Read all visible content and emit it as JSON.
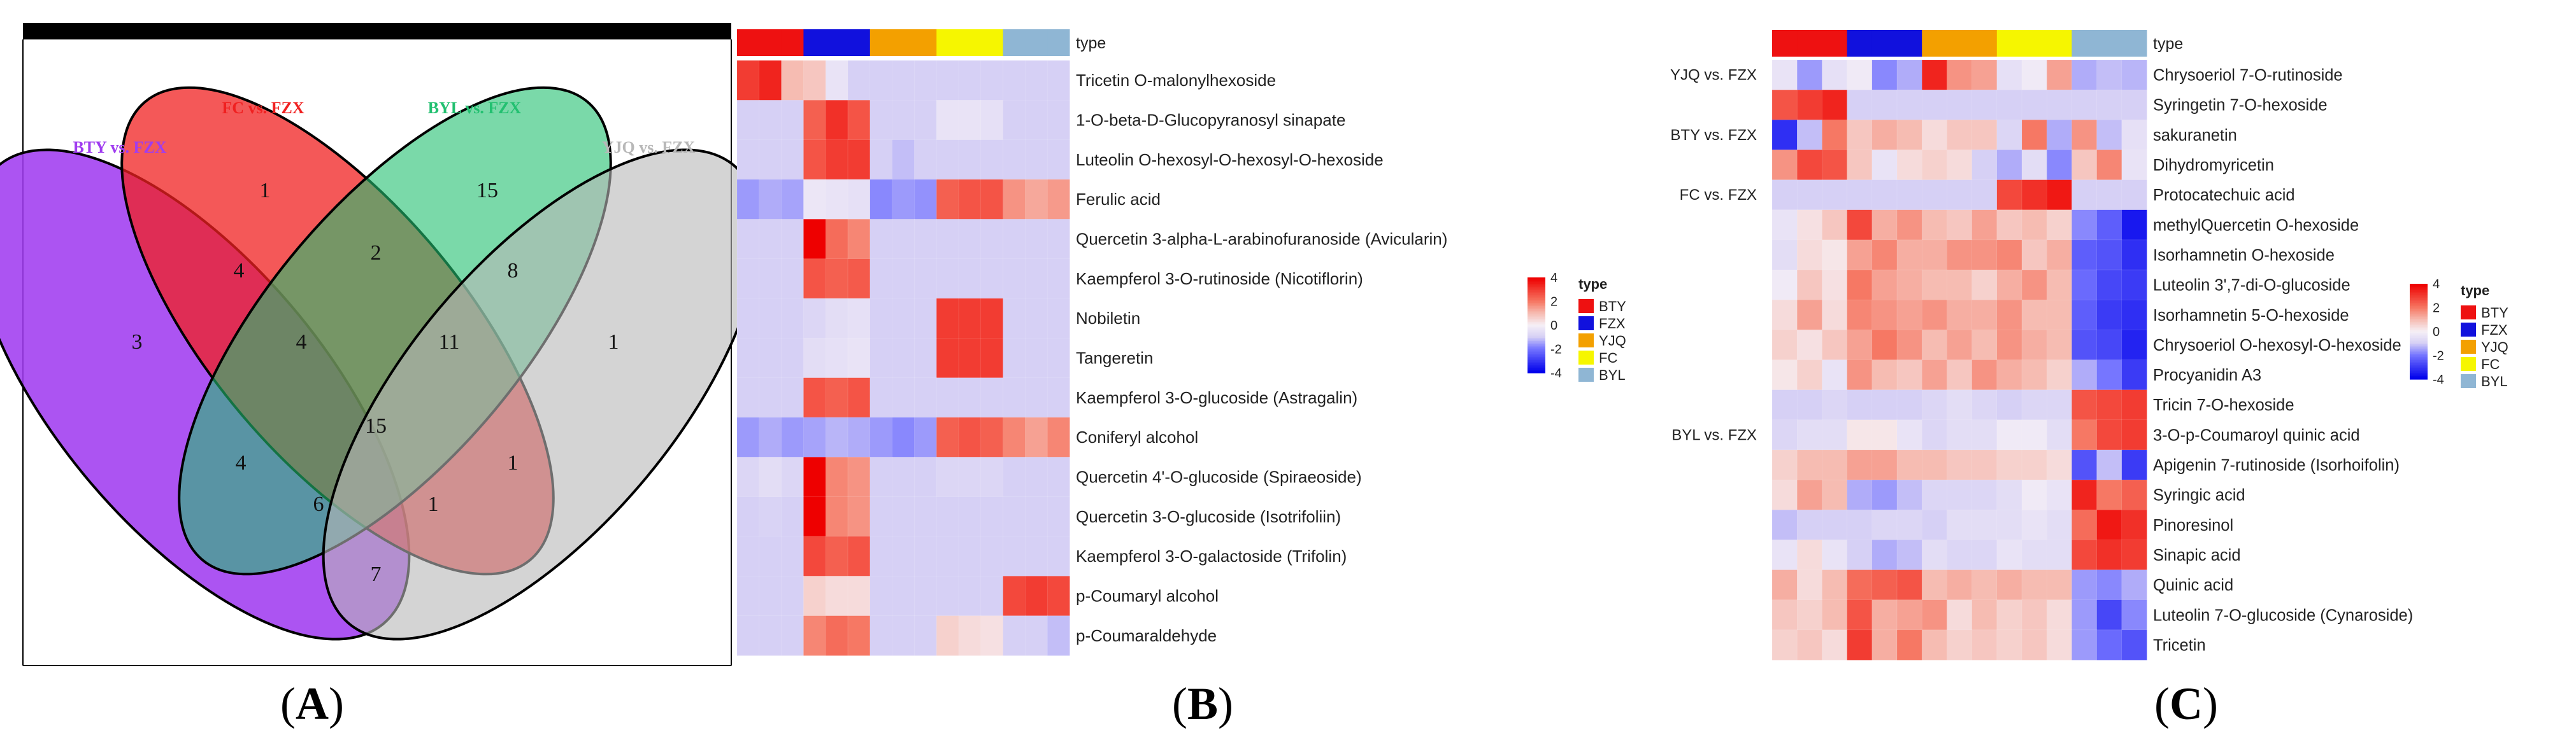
{
  "chart_data": [
    {
      "type": "venn",
      "panel_label": "(A)",
      "sets": [
        {
          "name": "BTY vs. FZX",
          "color": "#a03cf0"
        },
        {
          "name": "FC vs. FZX",
          "color": "#f02020"
        },
        {
          "name": "BYL vs. FZX",
          "color": "#22c070"
        },
        {
          "name": "YJQ vs. FZX",
          "color": "#b8b8b8"
        }
      ],
      "region_counts": {
        "BTY_only": 3,
        "FC_only": 1,
        "BYL_only": 15,
        "YJQ_only": 1,
        "BTY_FC": 4,
        "FC_BYL": 2,
        "BYL_YJQ": 8,
        "BTY_YJQ": 7,
        "BTY_BYL": 4,
        "FC_YJQ": 1,
        "BTY_FC_BYL": 4,
        "FC_BYL_YJQ": 11,
        "BTY_BYL_YJQ": 6,
        "BTY_FC_YJQ": 1,
        "all_four": 15
      }
    },
    {
      "type": "heatmap",
      "panel_label": "(B)",
      "type_header": "type",
      "groups": [
        "BTY",
        "FZX",
        "YJQ",
        "FC",
        "BYL"
      ],
      "replicates": 3,
      "rows": [
        {
          "name": "Tricetin O-malonylhexoside",
          "values": [
            3.0,
            3.4,
            1.0,
            0.8,
            -0.4,
            -1.0,
            -1.0,
            -1.0,
            -1.0,
            -1.0,
            -1.0,
            -1.0,
            -1.0,
            -1.0,
            -1.0
          ]
        },
        {
          "name": "1-O-beta-D-Glucopyranosyl sinapate",
          "values": [
            -1.0,
            -1.0,
            -1.0,
            2.4,
            3.2,
            2.6,
            -1.0,
            -1.0,
            -1.0,
            -0.4,
            -0.4,
            -0.5,
            -1.0,
            -1.0,
            -1.0
          ]
        },
        {
          "name": "Luteolin O-hexosyl-O-hexosyl-O-hexoside",
          "values": [
            -1.0,
            -1.0,
            -1.0,
            2.6,
            3.0,
            3.0,
            -1.0,
            -1.2,
            -1.0,
            -1.0,
            -1.0,
            -1.0,
            -1.0,
            -1.0,
            -1.0
          ]
        },
        {
          "name": "Ferulic acid",
          "values": [
            -1.6,
            -1.4,
            -1.5,
            -0.3,
            -0.4,
            -0.5,
            -1.8,
            -1.6,
            -1.7,
            2.4,
            2.6,
            2.6,
            1.6,
            1.3,
            1.5
          ]
        },
        {
          "name": "Quercetin 3-alpha-L-arabinofuranoside (Avicularin)",
          "values": [
            -1.0,
            -1.0,
            -1.0,
            4.0,
            2.2,
            1.8,
            -1.0,
            -1.0,
            -1.0,
            -1.0,
            -1.0,
            -1.0,
            -1.0,
            -1.0,
            -1.0
          ]
        },
        {
          "name": "Kaempferol 3-O-rutinoside (Nicotiflorin)",
          "values": [
            -1.0,
            -1.0,
            -1.0,
            2.6,
            2.4,
            2.5,
            -1.0,
            -1.0,
            -1.0,
            -1.0,
            -1.0,
            -1.0,
            -1.0,
            -1.0,
            -1.0
          ]
        },
        {
          "name": "Nobiletin",
          "values": [
            -1.0,
            -1.0,
            -1.0,
            -0.8,
            -0.6,
            -0.5,
            -1.0,
            -1.0,
            -1.0,
            3.0,
            3.0,
            3.0,
            -1.0,
            -1.0,
            -1.0
          ]
        },
        {
          "name": "Tangeretin",
          "values": [
            -1.0,
            -1.0,
            -1.0,
            -0.6,
            -0.5,
            -0.4,
            -1.0,
            -1.0,
            -1.0,
            3.0,
            3.0,
            3.0,
            -1.0,
            -1.0,
            -1.0
          ]
        },
        {
          "name": "Kaempferol 3-O-glucoside (Astragalin)",
          "values": [
            -1.0,
            -1.0,
            -1.0,
            2.6,
            2.4,
            2.6,
            -1.0,
            -1.0,
            -1.0,
            -1.0,
            -1.0,
            -1.0,
            -1.0,
            -1.0,
            -1.0
          ]
        },
        {
          "name": "Coniferyl alcohol",
          "values": [
            -1.6,
            -1.4,
            -1.6,
            -1.5,
            -1.3,
            -1.4,
            -1.6,
            -1.8,
            -1.6,
            2.4,
            2.6,
            2.4,
            1.8,
            1.4,
            1.8
          ]
        },
        {
          "name": "Quercetin 4'-O-glucoside (Spiraeoside)",
          "values": [
            -0.8,
            -0.6,
            -0.8,
            4.0,
            1.8,
            1.6,
            -1.0,
            -1.0,
            -1.0,
            -0.8,
            -0.8,
            -0.8,
            -1.0,
            -1.0,
            -1.0
          ]
        },
        {
          "name": "Quercetin 3-O-glucoside (Isotrifoliin)",
          "values": [
            -1.0,
            -0.9,
            -1.0,
            4.0,
            1.8,
            1.6,
            -1.0,
            -1.0,
            -1.0,
            -1.0,
            -1.0,
            -1.0,
            -1.0,
            -1.0,
            -1.0
          ]
        },
        {
          "name": "Kaempferol 3-O-galactoside (Trifolin)",
          "values": [
            -1.0,
            -1.0,
            -1.0,
            2.8,
            2.4,
            2.6,
            -1.0,
            -1.0,
            -1.0,
            -1.0,
            -1.0,
            -1.0,
            -1.0,
            -1.0,
            -1.0
          ]
        },
        {
          "name": "p-Coumaryl alcohol",
          "values": [
            -1.0,
            -1.0,
            -1.0,
            0.6,
            0.4,
            0.4,
            -1.0,
            -1.0,
            -1.0,
            -1.0,
            -1.0,
            -1.0,
            2.8,
            3.0,
            2.8
          ]
        },
        {
          "name": "p-Coumaraldehyde",
          "values": [
            -1.0,
            -1.0,
            -1.0,
            1.8,
            2.2,
            2.0,
            -1.0,
            -1.0,
            -1.0,
            0.6,
            0.4,
            0.3,
            -1.0,
            -1.0,
            -1.2
          ]
        }
      ],
      "legend": {
        "title": "type",
        "ticks": [
          4,
          2,
          0,
          -2,
          -4
        ],
        "items": [
          "BTY",
          "FZX",
          "YJQ",
          "FC",
          "BYL"
        ]
      }
    },
    {
      "type": "heatmap",
      "panel_label": "(C)",
      "type_header": "type",
      "groups": [
        "BTY",
        "FZX",
        "YJQ",
        "FC",
        "BYL"
      ],
      "replicates": 3,
      "row_groups": [
        {
          "name": "YJQ vs.  FZX",
          "start": 0,
          "end": 0
        },
        {
          "name": "BTY vs.  FZX",
          "start": 1,
          "end": 3
        },
        {
          "name": "FC  vs.  FZX",
          "start": 4,
          "end": 4
        },
        {
          "name": "BYL vs.  FZX",
          "start": 5,
          "end": 19
        }
      ],
      "rows": [
        {
          "name": "Chrysoeriol 7-O-rutinoside",
          "values": [
            -0.4,
            -1.6,
            -0.5,
            -0.2,
            -1.8,
            -1.4,
            3.4,
            1.6,
            1.4,
            -0.5,
            -0.2,
            1.4,
            -1.4,
            -1.2,
            -1.3
          ]
        },
        {
          "name": "Syringetin 7-O-hexoside",
          "values": [
            2.6,
            3.0,
            3.4,
            -1.0,
            -1.0,
            -1.0,
            -1.0,
            -1.0,
            -1.0,
            -1.0,
            -1.0,
            -1.0,
            -1.0,
            -1.0,
            -1.0
          ]
        },
        {
          "name": "sakuranetin",
          "values": [
            -3.2,
            -1.2,
            2.0,
            0.8,
            1.2,
            1.0,
            0.4,
            0.8,
            0.8,
            -0.8,
            2.0,
            -1.4,
            1.6,
            -1.2,
            -0.5
          ]
        },
        {
          "name": "Dihydromyricetin",
          "values": [
            1.6,
            2.8,
            2.6,
            0.8,
            -0.4,
            0.4,
            0.6,
            0.4,
            -1.0,
            -1.4,
            -0.6,
            -1.8,
            0.8,
            1.8,
            -0.4
          ]
        },
        {
          "name": "Protocatechuic acid",
          "values": [
            -1.0,
            -1.0,
            -1.0,
            -1.0,
            -1.0,
            -1.0,
            -1.0,
            -1.0,
            -1.0,
            2.8,
            3.2,
            3.6,
            -1.0,
            -1.0,
            -1.0
          ]
        },
        {
          "name": "methylQuercetin O-hexoside",
          "values": [
            -0.4,
            0.3,
            0.8,
            2.8,
            1.2,
            1.6,
            1.0,
            0.8,
            1.4,
            0.8,
            1.0,
            0.6,
            -1.8,
            -2.4,
            -3.6
          ]
        },
        {
          "name": "Isorhamnetin O-hexoside",
          "values": [
            -0.6,
            0.4,
            0.2,
            1.4,
            1.8,
            1.2,
            1.2,
            1.6,
            1.6,
            1.8,
            0.8,
            1.2,
            -2.4,
            -2.6,
            -3.2
          ]
        },
        {
          "name": "Luteolin 3',7-di-O-glucoside",
          "values": [
            -0.2,
            0.8,
            0.3,
            2.0,
            1.4,
            1.2,
            1.0,
            1.0,
            0.6,
            1.2,
            1.6,
            1.0,
            -2.2,
            -2.8,
            -3.0
          ]
        },
        {
          "name": "Isorhamnetin 5-O-hexoside",
          "values": [
            0.4,
            1.4,
            0.4,
            1.8,
            1.6,
            1.4,
            1.6,
            1.2,
            1.2,
            1.6,
            1.0,
            1.0,
            -2.4,
            -3.0,
            -3.2
          ]
        },
        {
          "name": "Chrysoeriol O-hexosyl-O-hexoside",
          "values": [
            0.6,
            0.3,
            0.8,
            1.4,
            2.0,
            1.6,
            1.0,
            1.4,
            1.0,
            1.6,
            1.2,
            1.0,
            -2.6,
            -2.8,
            -3.4
          ]
        },
        {
          "name": "Procyanidin A3",
          "values": [
            0.2,
            0.6,
            -0.4,
            1.6,
            1.0,
            0.8,
            1.4,
            0.8,
            1.6,
            1.2,
            1.0,
            0.6,
            -1.4,
            -2.0,
            -3.0
          ]
        },
        {
          "name": "Tricin 7-O-hexoside",
          "values": [
            -1.0,
            -1.0,
            -0.8,
            -1.0,
            -1.0,
            -1.0,
            -0.8,
            -0.6,
            -0.8,
            -1.0,
            -0.8,
            -0.8,
            2.6,
            2.8,
            3.0
          ]
        },
        {
          "name": "3-O-p-Coumaroyl quinic acid",
          "values": [
            -0.8,
            -0.6,
            -0.6,
            0.2,
            0.2,
            -0.4,
            -0.8,
            -0.6,
            -0.6,
            -0.2,
            -0.2,
            -0.6,
            2.0,
            2.8,
            3.0
          ]
        },
        {
          "name": "Apigenin 7-rutinoside (Isorhoifolin)",
          "values": [
            0.6,
            1.0,
            1.0,
            1.4,
            1.4,
            1.0,
            1.0,
            0.8,
            0.8,
            0.6,
            0.6,
            0.4,
            -2.6,
            -1.2,
            -3.0
          ]
        },
        {
          "name": "Syringic acid",
          "values": [
            0.4,
            1.4,
            1.0,
            -1.4,
            -1.6,
            -1.2,
            -0.8,
            -0.8,
            -0.8,
            -0.6,
            -0.2,
            -0.4,
            3.4,
            2.0,
            2.4
          ]
        },
        {
          "name": "Pinoresinol",
          "values": [
            -1.2,
            -1.0,
            -1.0,
            -1.0,
            -0.8,
            -0.8,
            -1.0,
            -0.6,
            -0.6,
            -0.6,
            -0.4,
            -0.6,
            2.2,
            3.6,
            3.2
          ]
        },
        {
          "name": "Sinapic acid",
          "values": [
            -0.4,
            0.4,
            -0.4,
            -1.0,
            -1.4,
            -1.2,
            -0.6,
            -0.8,
            -0.8,
            -0.4,
            -0.6,
            -0.6,
            2.8,
            3.2,
            3.0
          ]
        },
        {
          "name": "Quinic acid",
          "values": [
            1.2,
            0.4,
            1.0,
            2.2,
            2.4,
            2.6,
            1.0,
            1.2,
            1.0,
            1.2,
            1.0,
            1.0,
            -1.6,
            -1.8,
            -1.4
          ]
        },
        {
          "name": "Luteolin 7-O-glucoside (Cynaroside)",
          "values": [
            0.8,
            0.6,
            1.0,
            2.6,
            1.2,
            1.4,
            1.6,
            0.4,
            1.0,
            0.6,
            0.8,
            0.4,
            -1.6,
            -2.8,
            -1.8
          ]
        },
        {
          "name": "Tricetin",
          "values": [
            0.6,
            0.8,
            0.4,
            3.0,
            1.2,
            2.0,
            1.0,
            0.6,
            0.8,
            0.6,
            0.8,
            0.4,
            -1.6,
            -2.2,
            -2.6
          ]
        }
      ],
      "legend": {
        "title": "type",
        "ticks": [
          4,
          2,
          0,
          -2,
          -4
        ],
        "items": [
          "BTY",
          "FZX",
          "YJQ",
          "FC",
          "BYL"
        ]
      }
    }
  ],
  "group_colors": {
    "BTY": "#ee1111",
    "FZX": "#1111dd",
    "YJQ": "#f3a000",
    "FC": "#f6f600",
    "BYL": "#8fb6d4"
  }
}
